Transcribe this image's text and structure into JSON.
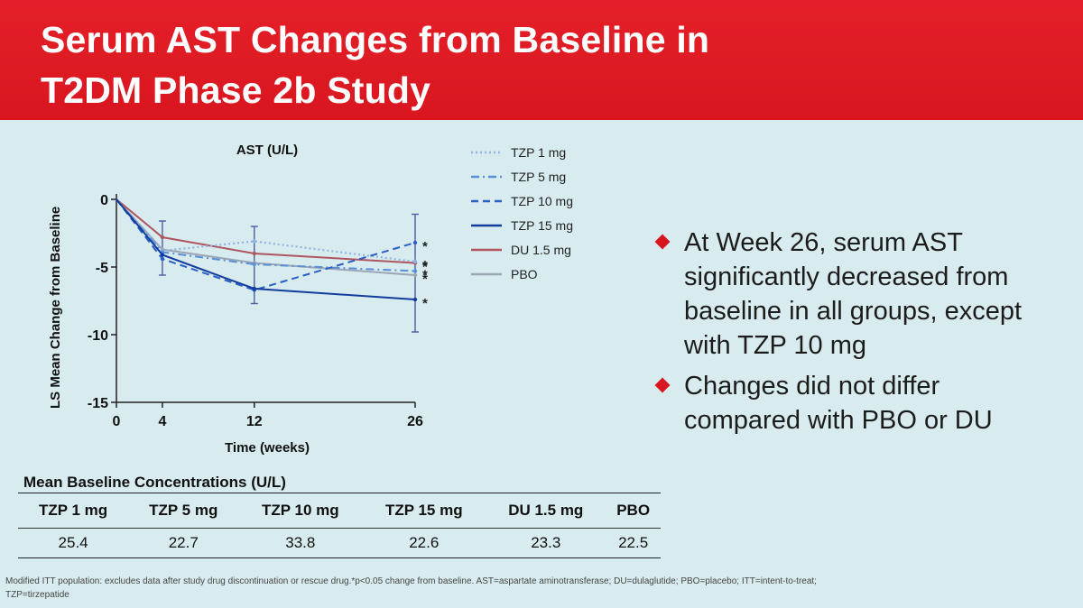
{
  "slide": {
    "title_line1": "Serum AST Changes from Baseline in",
    "title_line2": "T2DM Phase 2b Study"
  },
  "chart_data": {
    "type": "line",
    "title": "AST (U/L)",
    "xlabel": "Time (weeks)",
    "ylabel": "LS Mean Change from Baseline",
    "x": [
      0,
      4,
      12,
      26
    ],
    "x_ticks": [
      "0",
      "4",
      "12",
      "26"
    ],
    "ylim": [
      -15,
      0
    ],
    "y_ticks": [
      "0",
      "-5",
      "-10",
      "-15"
    ],
    "y_tick_values": [
      0,
      -5,
      -10,
      -15
    ],
    "grid": false,
    "legend_position": "top-right",
    "series": [
      {
        "name": "TZP 1 mg",
        "values": [
          0,
          -3.8,
          -3.1,
          -4.6
        ],
        "color": "#8fb4e3",
        "style": "dotted",
        "sig": "*"
      },
      {
        "name": "TZP 5 mg",
        "values": [
          0,
          -3.9,
          -4.8,
          -5.3
        ],
        "color": "#5b8fd6",
        "style": "dashdot",
        "sig": "*"
      },
      {
        "name": "TZP 10 mg",
        "values": [
          0,
          -4.4,
          -6.7,
          -3.2
        ],
        "color": "#2a5fc4",
        "style": "dashed",
        "sig": "*"
      },
      {
        "name": "TZP 15 mg",
        "values": [
          0,
          -4.1,
          -6.6,
          -7.4
        ],
        "color": "#123c9e",
        "style": "solid",
        "sig": "*"
      },
      {
        "name": "DU 1.5 mg",
        "values": [
          0,
          -2.8,
          -4.0,
          -4.7
        ],
        "color": "#b05560",
        "style": "solid",
        "sig": "*"
      },
      {
        "name": "PBO",
        "values": [
          0,
          -3.7,
          -4.7,
          -5.6
        ],
        "color": "#9aa6b4",
        "style": "solid",
        "sig": "*"
      }
    ],
    "error_bars": [
      {
        "x": 4,
        "low": -5.6,
        "high": -1.6
      },
      {
        "x": 12,
        "low": -7.7,
        "high": -2.0
      },
      {
        "x": 26,
        "low": -9.8,
        "high": -1.1
      }
    ]
  },
  "bullets": [
    "At Week 26, serum AST significantly decreased from baseline in all groups, except with TZP 10 mg",
    "Changes did not differ compared with PBO or DU"
  ],
  "table": {
    "title": "Mean Baseline Concentrations (U/L)",
    "headers": [
      "TZP 1 mg",
      "TZP 5 mg",
      "TZP 10 mg",
      "TZP 15 mg",
      "DU 1.5 mg",
      "PBO"
    ],
    "values": [
      "25.4",
      "22.7",
      "33.8",
      "22.6",
      "23.3",
      "22.5"
    ]
  },
  "footnote": {
    "line1": "Modified ITT population: excludes data after study drug discontinuation or rescue drug.*p<0.05 change from baseline. AST=aspartate aminotransferase; DU=dulaglutide; PBO=placebo; ITT=intent-to-treat;",
    "line2": "TZP=tirzepatide"
  },
  "colors": {
    "header_red": "#d9161f",
    "background": "#d8ecef",
    "bullet_diamond": "#d9161f"
  }
}
